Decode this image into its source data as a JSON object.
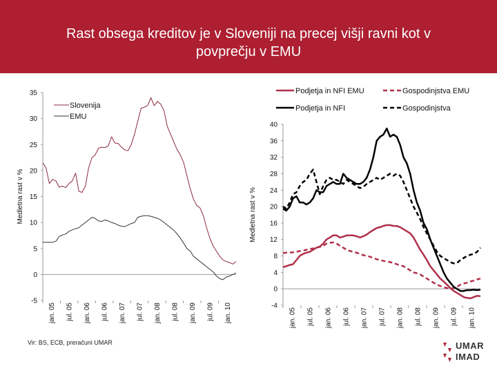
{
  "slide": {
    "title_line1": "Rast obsega kreditov je v Sloveniji na precej višji ravni kot v",
    "title_line2": "povprečju v EMU",
    "source": "Vir: BS, ECB, preračuni UMAR",
    "logo_line1": "UMAR",
    "logo_line2": "IMAD",
    "colors": {
      "header": "#ad1f31",
      "slovenija": "#8b2a3c",
      "emu": "#333333",
      "nfi_emu": "#b0304a",
      "hh_emu": "#b0304a",
      "nfi": "#000000",
      "hh": "#000000"
    }
  },
  "chart_data": [
    {
      "type": "line",
      "ylabel": "Medletna rast v %",
      "ylim": [
        -5,
        35
      ],
      "yticks": [
        -5,
        0,
        5,
        10,
        15,
        20,
        25,
        30,
        35
      ],
      "xlabels": [
        "jan. 05",
        "jul. 05",
        "jan. 06",
        "jul. 06",
        "jan. 07",
        "jul. 07",
        "jan. 08",
        "jul. 08",
        "jan. 09",
        "jul. 09",
        "jan. 10"
      ],
      "legend_position": "top-left",
      "series": [
        {
          "name": "Slovenija",
          "values": [
            21.5,
            20.5,
            17.5,
            18.3,
            18,
            16.8,
            17,
            16.7,
            17.5,
            18,
            19.5,
            16,
            15.8,
            17,
            20.5,
            22.5,
            23,
            24.3,
            24.5,
            24.4,
            24.8,
            26.5,
            25.3,
            25.2,
            24.5,
            24,
            23.8,
            25,
            27,
            29.5,
            32,
            32.2,
            32.5,
            34,
            32.5,
            33.3,
            32.8,
            31.5,
            28.5,
            27,
            25.5,
            24,
            23,
            21.5,
            19,
            16.5,
            14.5,
            13.3,
            12.8,
            11.3,
            9,
            7,
            5.5,
            4.5,
            3.5,
            2.8,
            2.5,
            2.3,
            2,
            2.5
          ]
        },
        {
          "name": "EMU",
          "values": [
            6.2,
            6.2,
            6.2,
            6.2,
            6.4,
            7.3,
            7.6,
            7.8,
            8.3,
            8.6,
            8.8,
            9,
            9.5,
            10,
            10.5,
            11,
            10.8,
            10.3,
            10.2,
            10.5,
            10.3,
            10,
            9.8,
            9.5,
            9.3,
            9.2,
            9.5,
            9.8,
            10,
            11,
            11.2,
            11.3,
            11.3,
            11.2,
            11,
            10.8,
            10.5,
            10,
            9.5,
            9,
            8.5,
            7.8,
            7,
            6,
            5,
            4.5,
            3.5,
            3,
            2.5,
            2,
            1.5,
            1,
            0.5,
            -0.3,
            -0.8,
            -1,
            -0.5,
            -0.3,
            0,
            0.3
          ]
        }
      ]
    },
    {
      "type": "line",
      "ylabel": "Medletna rast v %",
      "ylim": [
        -4,
        40
      ],
      "yticks": [
        -4,
        0,
        4,
        8,
        12,
        16,
        20,
        24,
        28,
        32,
        36,
        40
      ],
      "xlabels": [
        "jan. 05",
        "jul. 05",
        "jan. 06",
        "jul. 06",
        "jan. 07",
        "jul. 07",
        "jan. 08",
        "jul. 08",
        "jan. 09",
        "jul. 09",
        "jan. 10"
      ],
      "legend_position": "top",
      "series": [
        {
          "name": "Podjetja in NFI EMU",
          "values": [
            5.3,
            5.5,
            5.8,
            6,
            7,
            8,
            8.5,
            8.8,
            9,
            9.5,
            10,
            10.3,
            11,
            12,
            12.5,
            13,
            13,
            12.5,
            12.7,
            13,
            13,
            13,
            12.8,
            12.5,
            12.8,
            13.2,
            13.8,
            14.3,
            14.8,
            15,
            15.3,
            15.5,
            15.5,
            15.3,
            15.3,
            15,
            14.5,
            14,
            13.5,
            12.5,
            11,
            9.5,
            8.3,
            7,
            5.5,
            4.5,
            3.5,
            2.5,
            1.8,
            1,
            0.2,
            -0.5,
            -1,
            -1.5,
            -2,
            -2.2,
            -2.3,
            -2,
            -1.7,
            -1.8
          ]
        },
        {
          "name": "Gospodinjstva EMU",
          "values": [
            8.7,
            8.8,
            8.8,
            8.9,
            9,
            9.2,
            9.3,
            9.5,
            9.7,
            9.8,
            10,
            10.2,
            10.5,
            11,
            11.2,
            11.3,
            11,
            10.5,
            10,
            9.5,
            9.2,
            9,
            8.8,
            8.5,
            8.2,
            8,
            7.8,
            7.5,
            7.2,
            7,
            6.8,
            6.7,
            6.5,
            6.3,
            6,
            5.7,
            5.5,
            5,
            4.5,
            4,
            3.8,
            3.5,
            3,
            2.5,
            2,
            1.5,
            1,
            0.7,
            0.4,
            0.2,
            0,
            0.2,
            0.5,
            1,
            1.3,
            1.5,
            1.8,
            2,
            2.3,
            2.5
          ]
        },
        {
          "name": "Podjetja in NFI",
          "values": [
            19.5,
            19,
            20,
            22,
            22.5,
            21,
            21,
            20.5,
            21,
            22,
            24,
            23.5,
            23.5,
            25,
            25.5,
            26,
            25.5,
            25.5,
            28,
            27,
            26.5,
            26,
            25.5,
            25.5,
            26,
            27,
            29,
            32,
            36,
            37,
            37.5,
            39,
            37,
            37.5,
            37,
            35,
            32,
            30.5,
            28,
            24,
            21,
            19,
            16,
            14.5,
            12,
            10,
            8,
            6,
            4,
            2.5,
            1.5,
            0.5,
            0,
            -0.5,
            -0.5,
            -0.3,
            -0.3,
            -0.2,
            -0.3,
            -0.2
          ]
        },
        {
          "name": "Gospodinjstva",
          "values": [
            20,
            19.5,
            21,
            23,
            23.5,
            25,
            26,
            26.5,
            28,
            29,
            26,
            23,
            25,
            26.5,
            27,
            26.5,
            26.5,
            26,
            25.5,
            26.5,
            26,
            25.5,
            25,
            24.5,
            24.8,
            25.5,
            26,
            26.5,
            27,
            26.5,
            27,
            27.5,
            28,
            27.5,
            28,
            27.5,
            26,
            24,
            22,
            20,
            18.5,
            17,
            15,
            13.5,
            12,
            10.5,
            9,
            8,
            7.5,
            7,
            6.5,
            6.2,
            6.3,
            7,
            7.5,
            8,
            8.3,
            8.5,
            9,
            10
          ]
        }
      ]
    }
  ]
}
